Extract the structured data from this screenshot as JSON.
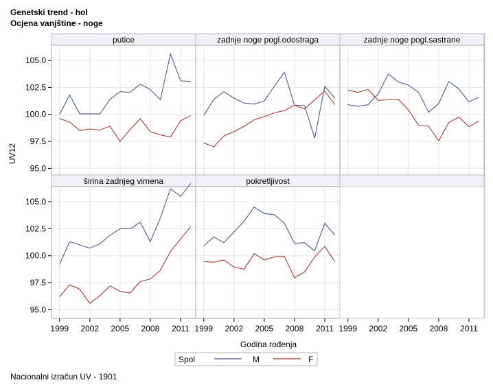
{
  "header": {
    "title_line1": "Genetski trend - hol",
    "title_line2": "Ocjena vanjštine - noge"
  },
  "footnote": "Nacionalni izračun UV - 1901",
  "chart_data": {
    "type": "line",
    "layout": "panel grid 3 columns x 2 rows, shared axes",
    "xlabel": "Godina rođenja",
    "ylabel": "UV12",
    "x": [
      1999,
      2000,
      2001,
      2002,
      2003,
      2004,
      2005,
      2006,
      2007,
      2008,
      2009,
      2010,
      2011,
      2012
    ],
    "xticks": [
      1999,
      2002,
      2005,
      2008,
      2011
    ],
    "xlim": [
      1998.2,
      2012.5
    ],
    "yticks": [
      95.0,
      97.5,
      100.0,
      102.5,
      105.0
    ],
    "ytick_labels": [
      "95.0",
      "97.5",
      "100.0",
      "102.5",
      "105.0"
    ],
    "ylim": [
      94.2,
      106.4
    ],
    "grid": true,
    "legend": {
      "title": "Spol",
      "position": "bottom",
      "entries": [
        {
          "label": "M",
          "color": "#4a5a8f"
        },
        {
          "label": "F",
          "color": "#a83a32"
        }
      ]
    },
    "panels": [
      {
        "title": "putice",
        "series": [
          {
            "name": "M",
            "values": [
              100.0,
              101.8,
              100.05,
              100.05,
              100.05,
              101.4,
              102.1,
              102.05,
              102.8,
              102.3,
              101.35,
              105.6,
              103.1,
              103.05
            ]
          },
          {
            "name": "F",
            "values": [
              99.6,
              99.3,
              98.5,
              98.65,
              98.55,
              98.9,
              97.5,
              98.6,
              99.6,
              98.4,
              98.1,
              97.9,
              99.4,
              99.9
            ]
          }
        ]
      },
      {
        "title": "zadnje noge pogl.odostraga",
        "series": [
          {
            "name": "M",
            "values": [
              99.9,
              101.4,
              102.1,
              101.5,
              101.05,
              100.95,
              101.25,
              102.6,
              103.9,
              100.85,
              100.8,
              97.8,
              102.6,
              101.5
            ]
          },
          {
            "name": "F",
            "values": [
              97.35,
              97.0,
              98.0,
              98.4,
              98.9,
              99.5,
              99.8,
              100.15,
              100.35,
              100.85,
              100.5,
              101.35,
              102.15,
              100.9
            ]
          }
        ]
      },
      {
        "title": "zadnje noge pogl.sastrane",
        "series": [
          {
            "name": "M",
            "values": [
              100.9,
              100.75,
              100.9,
              101.9,
              103.75,
              103.0,
              102.7,
              102.05,
              100.2,
              101.0,
              103.05,
              102.35,
              101.15,
              101.6
            ]
          },
          {
            "name": "F",
            "values": [
              102.25,
              102.05,
              102.3,
              101.3,
              101.35,
              101.4,
              100.4,
              99.0,
              98.9,
              97.55,
              99.25,
              99.75,
              98.85,
              99.4
            ]
          }
        ]
      },
      {
        "title": "širina zadnjeg vimena",
        "series": [
          {
            "name": "M",
            "values": [
              99.2,
              101.3,
              101.0,
              100.7,
              101.1,
              101.9,
              102.5,
              102.5,
              103.1,
              101.3,
              103.5,
              106.2,
              105.5,
              106.7
            ]
          },
          {
            "name": "F",
            "values": [
              96.2,
              97.3,
              96.9,
              95.6,
              96.3,
              97.2,
              96.7,
              96.55,
              97.6,
              97.85,
              98.65,
              100.4,
              101.55,
              102.7
            ]
          }
        ]
      },
      {
        "title": "pokretljivost",
        "series": [
          {
            "name": "M",
            "values": [
              100.9,
              101.75,
              101.2,
              102.2,
              103.2,
              104.5,
              103.9,
              103.8,
              103.0,
              101.15,
              101.2,
              100.45,
              103.0,
              101.9
            ]
          },
          {
            "name": "F",
            "values": [
              99.45,
              99.4,
              99.6,
              98.95,
              98.75,
              100.2,
              99.6,
              99.9,
              99.95,
              97.95,
              98.5,
              99.9,
              100.85,
              99.45
            ]
          }
        ]
      }
    ]
  }
}
